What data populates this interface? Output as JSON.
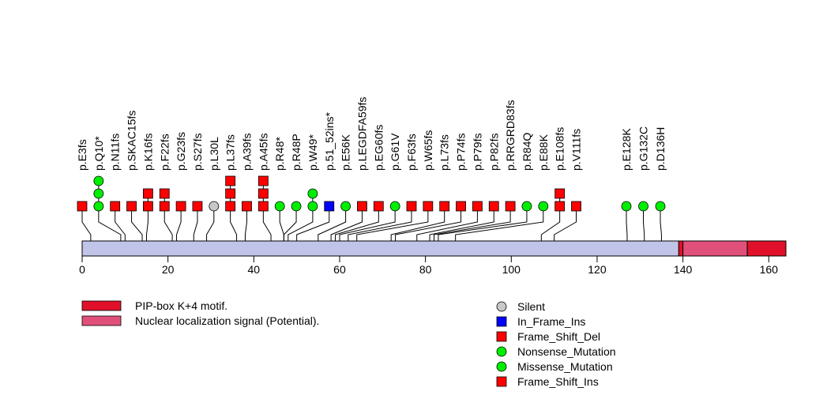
{
  "chart_data": {
    "type": "lollipop",
    "title": "",
    "xlabel": "",
    "ylabel": "",
    "protein_length": 164,
    "xlim": [
      0,
      164
    ],
    "x_ticks": [
      0,
      20,
      40,
      60,
      80,
      100,
      120,
      140,
      160
    ],
    "colors": {
      "backbone": "#c0c4e8",
      "Silent": "#c8c8c8",
      "In_Frame_Ins": "#0000ff",
      "Frame_Shift_Del": "#ff0000",
      "Nonsense_Mutation": "#00ee00",
      "Missense_Mutation": "#00ee00",
      "Frame_Shift_Ins": "#ff0000"
    },
    "domains": [
      {
        "name": "PIP-box K+4 motif.",
        "start": 139,
        "end": 140,
        "color": "#e0102a"
      },
      {
        "name": "Nuclear localization signal (Potential).",
        "start": 140,
        "end": 155,
        "color": "#e0507a"
      },
      {
        "name": "PIP-box K+4 motif.",
        "start": 155,
        "end": 164,
        "color": "#e0102a"
      }
    ],
    "mutations": [
      {
        "label": "p.E3fs",
        "pos": 2,
        "markers": [
          "Frame_Shift_Del"
        ]
      },
      {
        "label": "p.Q10*",
        "pos": 9,
        "markers": [
          "Nonsense_Mutation",
          "Nonsense_Mutation",
          "Nonsense_Mutation"
        ]
      },
      {
        "label": "p.N11fs",
        "pos": 10,
        "markers": [
          "Frame_Shift_Del"
        ]
      },
      {
        "label": "p.SKAC15fs",
        "pos": 14,
        "markers": [
          "Frame_Shift_Del"
        ]
      },
      {
        "label": "p.K16fs",
        "pos": 15,
        "markers": [
          "Frame_Shift_Del",
          "Frame_Shift_Ins"
        ]
      },
      {
        "label": "p.F22fs",
        "pos": 21,
        "markers": [
          "Frame_Shift_Del",
          "Frame_Shift_Ins"
        ]
      },
      {
        "label": "p.G23fs",
        "pos": 22,
        "markers": [
          "Frame_Shift_Del"
        ]
      },
      {
        "label": "p.S27fs",
        "pos": 26,
        "markers": [
          "Frame_Shift_Del"
        ]
      },
      {
        "label": "p.L30L",
        "pos": 29,
        "markers": [
          "Silent"
        ]
      },
      {
        "label": "p.L37fs",
        "pos": 36,
        "markers": [
          "Frame_Shift_Del",
          "Frame_Shift_Del",
          "Frame_Shift_Ins"
        ]
      },
      {
        "label": "p.A39fs",
        "pos": 38,
        "markers": [
          "Frame_Shift_Del"
        ]
      },
      {
        "label": "p.A45fs",
        "pos": 44,
        "markers": [
          "Frame_Shift_Del",
          "Frame_Shift_Del",
          "Frame_Shift_Ins"
        ]
      },
      {
        "label": "p.R48*",
        "pos": 47,
        "markers": [
          "Nonsense_Mutation"
        ]
      },
      {
        "label": "p.R48P",
        "pos": 47,
        "markers": [
          "Missense_Mutation"
        ]
      },
      {
        "label": "p.W49*",
        "pos": 48,
        "markers": [
          "Nonsense_Mutation",
          "Nonsense_Mutation"
        ]
      },
      {
        "label": "p.51_52ins*",
        "pos": 50,
        "markers": [
          "In_Frame_Ins"
        ]
      },
      {
        "label": "p.E56K",
        "pos": 55,
        "markers": [
          "Missense_Mutation"
        ]
      },
      {
        "label": "p.LEGDFA59fs",
        "pos": 58,
        "markers": [
          "Frame_Shift_Del"
        ]
      },
      {
        "label": "p.EG60fs",
        "pos": 59,
        "markers": [
          "Frame_Shift_Del"
        ]
      },
      {
        "label": "p.G61V",
        "pos": 60,
        "markers": [
          "Missense_Mutation"
        ]
      },
      {
        "label": "p.F63fs",
        "pos": 62,
        "markers": [
          "Frame_Shift_Del"
        ]
      },
      {
        "label": "p.W65fs",
        "pos": 64,
        "markers": [
          "Frame_Shift_Del"
        ]
      },
      {
        "label": "p.L73fs",
        "pos": 72,
        "markers": [
          "Frame_Shift_Del"
        ]
      },
      {
        "label": "p.P74fs",
        "pos": 73,
        "markers": [
          "Frame_Shift_Del"
        ]
      },
      {
        "label": "p.P79fs",
        "pos": 78,
        "markers": [
          "Frame_Shift_Del"
        ]
      },
      {
        "label": "p.P82fs",
        "pos": 81,
        "markers": [
          "Frame_Shift_Del"
        ]
      },
      {
        "label": "p.RRGRD83fs",
        "pos": 82,
        "markers": [
          "Frame_Shift_Del"
        ]
      },
      {
        "label": "p.R84Q",
        "pos": 83,
        "markers": [
          "Missense_Mutation"
        ]
      },
      {
        "label": "p.E88K",
        "pos": 87,
        "markers": [
          "Missense_Mutation"
        ]
      },
      {
        "label": "p.E108fs",
        "pos": 107,
        "markers": [
          "Frame_Shift_Del",
          "Frame_Shift_Ins"
        ]
      },
      {
        "label": "p.V111fs",
        "pos": 110,
        "markers": [
          "Frame_Shift_Del"
        ]
      },
      {
        "label": "p.E128K",
        "pos": 127,
        "markers": [
          "Missense_Mutation"
        ]
      },
      {
        "label": "p.G132C",
        "pos": 131,
        "markers": [
          "Missense_Mutation"
        ]
      },
      {
        "label": "p.D136H",
        "pos": 135,
        "markers": [
          "Missense_Mutation"
        ]
      }
    ],
    "legend_domains": [
      {
        "label": "PIP-box K+4 motif.",
        "color": "#e0102a"
      },
      {
        "label": "Nuclear localization signal (Potential).",
        "color": "#e0507a"
      }
    ],
    "legend_mutations": [
      {
        "label": "Silent",
        "shape": "circle",
        "color": "#c8c8c8"
      },
      {
        "label": "In_Frame_Ins",
        "shape": "square",
        "color": "#0000ff"
      },
      {
        "label": "Frame_Shift_Del",
        "shape": "square",
        "color": "#ff0000"
      },
      {
        "label": "Nonsense_Mutation",
        "shape": "circle",
        "color": "#00ee00"
      },
      {
        "label": "Missense_Mutation",
        "shape": "circle",
        "color": "#00ee00"
      },
      {
        "label": "Frame_Shift_Ins",
        "shape": "square",
        "color": "#ff0000"
      }
    ]
  }
}
